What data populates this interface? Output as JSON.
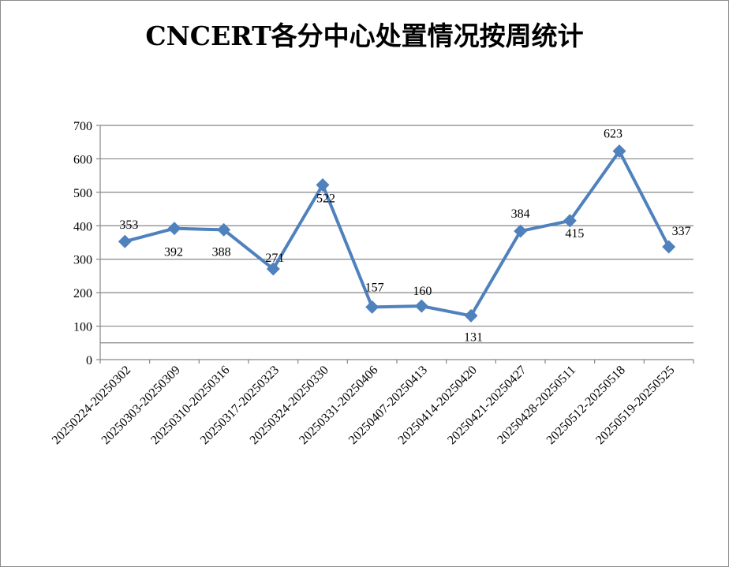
{
  "chart_data": {
    "type": "line",
    "title": "CNCERT各分中心处置情况按周统计",
    "xlabel": "",
    "ylabel": "",
    "categories": [
      "20250224-20250302",
      "20250303-20250309",
      "20250310-20250316",
      "20250317-20250323",
      "20250324-20250330",
      "20250331-20250406",
      "20250407-20250413",
      "20250414-20250420",
      "20250421-20250427",
      "20250428-20250511",
      "20250512-20250518",
      "20250519-20250525"
    ],
    "series": [
      {
        "values": [
          353,
          392,
          388,
          271,
          522,
          157,
          160,
          131,
          384,
          415,
          623,
          337
        ]
      }
    ],
    "ylim": [
      0,
      700
    ],
    "yticks": [
      0,
      100,
      200,
      300,
      400,
      500,
      600,
      700
    ],
    "grid": true,
    "legend": "none",
    "line_color": "#4f81bd",
    "grid_color": "#868686"
  }
}
